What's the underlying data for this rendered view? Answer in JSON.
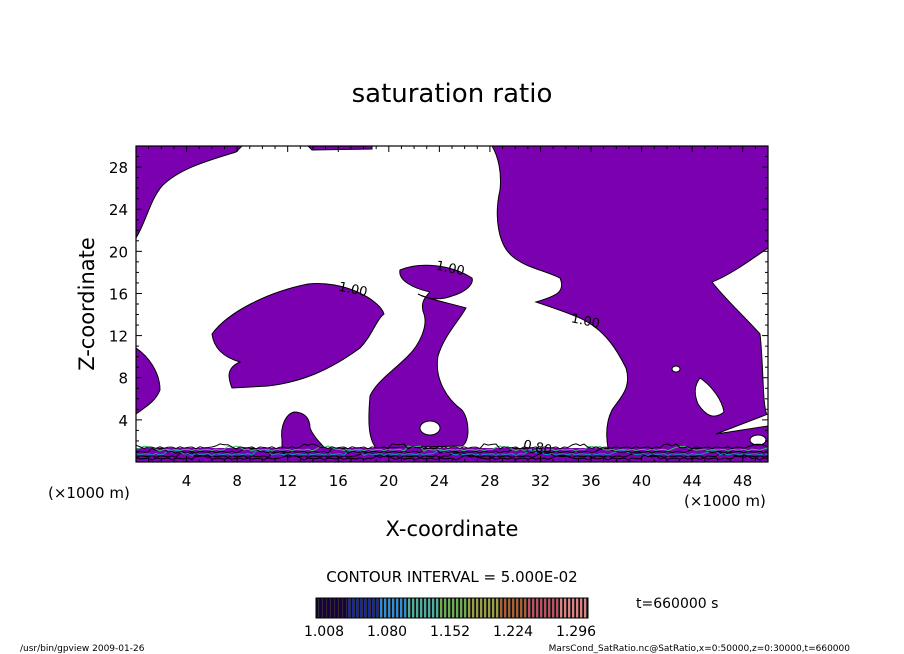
{
  "chart_data": {
    "type": "contour",
    "title": "saturation ratio",
    "xlabel": "X-coordinate",
    "ylabel": "Z-coordinate",
    "x_unit": "(×1000 m)",
    "y_unit": "(×1000 m)",
    "xlim": [
      0,
      50
    ],
    "ylim": [
      0,
      30
    ],
    "xticks": [
      4,
      8,
      12,
      16,
      20,
      24,
      28,
      32,
      36,
      40,
      44,
      48
    ],
    "yticks": [
      4,
      8,
      12,
      16,
      20,
      24,
      28
    ],
    "contour_interval_text": "CONTOUR INTERVAL = 5.000E-02",
    "contour_labels": [
      {
        "text": "1.00",
        "x": 17.1,
        "y": 16.0
      },
      {
        "text": "1.00",
        "x": 24.8,
        "y": 18.0
      },
      {
        "text": "1.00",
        "x": 35.5,
        "y": 13.0
      },
      {
        "text": "0.80",
        "x": 31.7,
        "y": 1.0
      }
    ],
    "fill_color": "#7a00b0",
    "colorbar": {
      "tick_labels": [
        "1.008",
        "1.080",
        "1.152",
        "1.224",
        "1.296"
      ],
      "colors": [
        "#1a0040",
        "#1a2a9a",
        "#2f8fd8",
        "#4ab0a0",
        "#6ab050",
        "#9aa040",
        "#b06030",
        "#c05060",
        "#e08080"
      ]
    },
    "time_label": "t=660000 s"
  },
  "footer": {
    "left": "/usr/bin/gpview   2009-01-26",
    "right": "MarsCond_SatRatio.nc@SatRatio,x=0:50000,z=0:30000,t=660000"
  }
}
